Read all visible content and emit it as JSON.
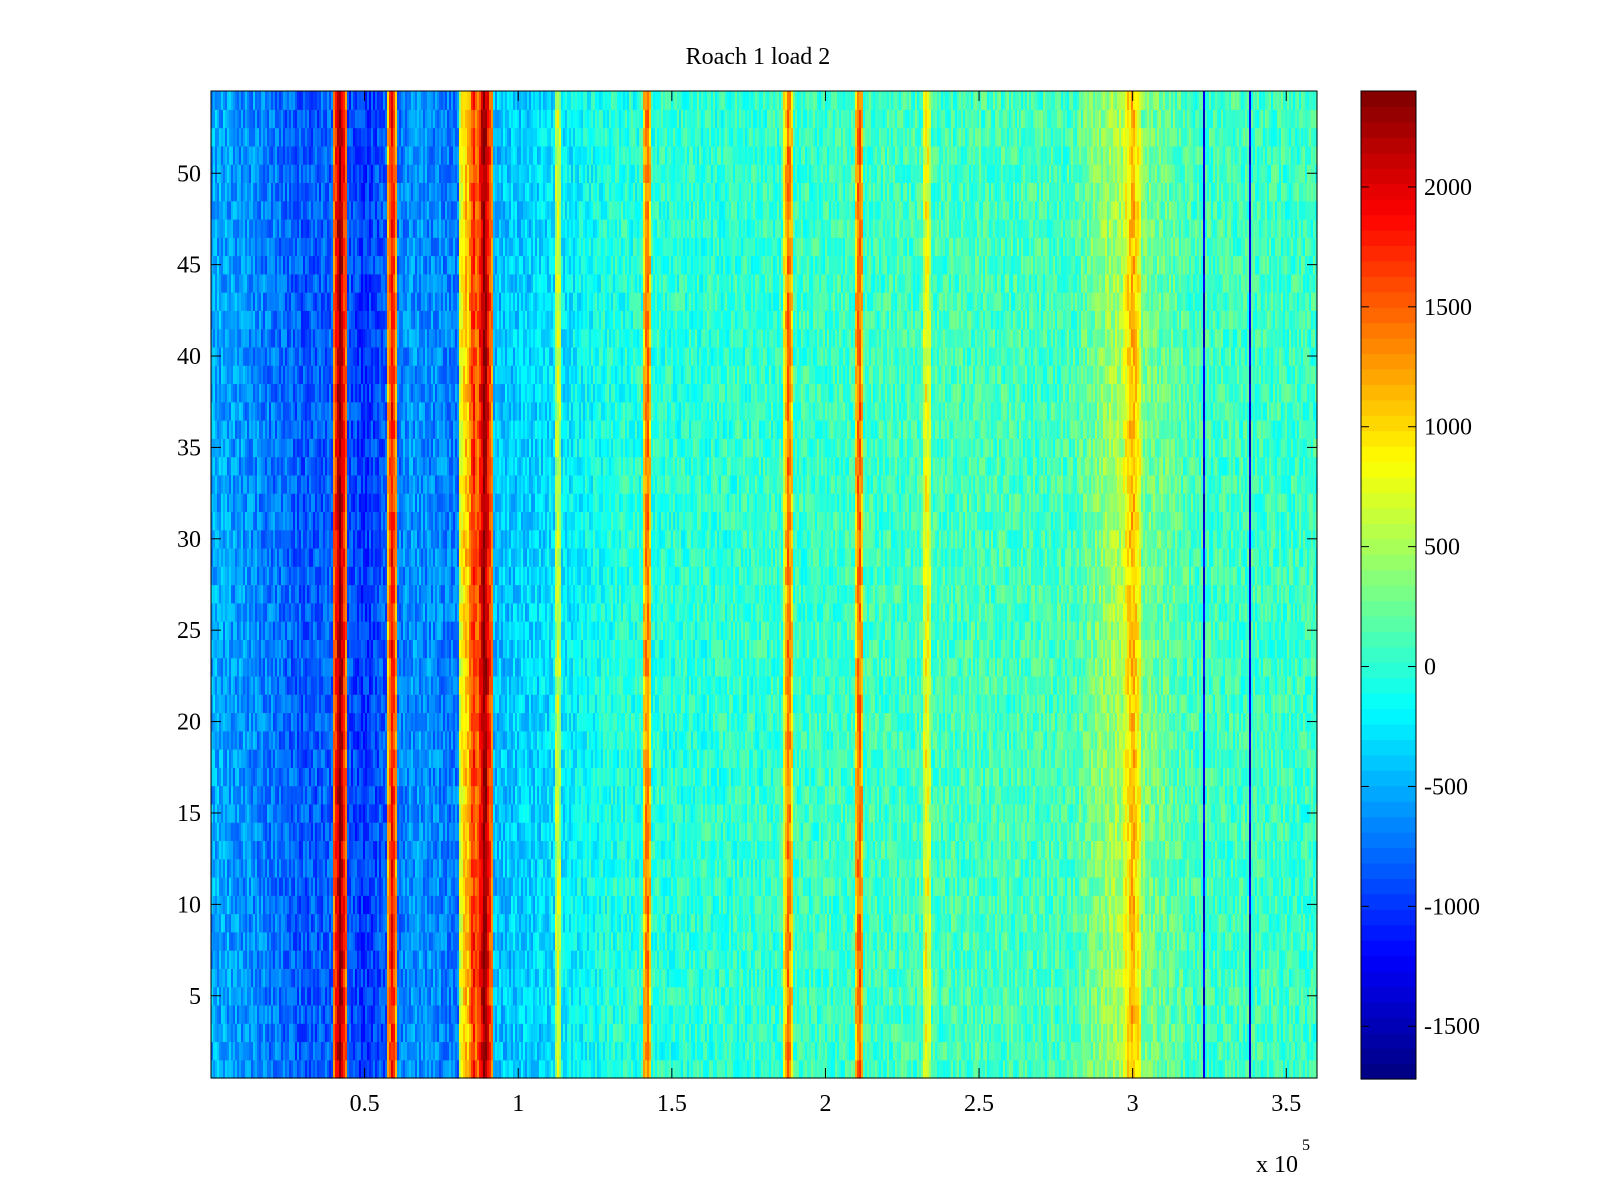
{
  "chart_data": {
    "type": "heatmap",
    "title": "Roach 1 load 2",
    "xlabel": "",
    "ylabel": "",
    "x_exponent_label": "x 10",
    "x_exponent_power": "5",
    "xlim": [
      0,
      360000
    ],
    "ylim": [
      0.5,
      54.5
    ],
    "x_ticks": [
      {
        "value": 0.5,
        "label": "0.5"
      },
      {
        "value": 1,
        "label": "1"
      },
      {
        "value": 1.5,
        "label": "1.5"
      },
      {
        "value": 2,
        "label": "2"
      },
      {
        "value": 2.5,
        "label": "2.5"
      },
      {
        "value": 3,
        "label": "3"
      },
      {
        "value": 3.5,
        "label": "3.5"
      }
    ],
    "y_ticks": [
      {
        "value": 5,
        "label": "5"
      },
      {
        "value": 10,
        "label": "10"
      },
      {
        "value": 15,
        "label": "15"
      },
      {
        "value": 20,
        "label": "20"
      },
      {
        "value": 25,
        "label": "25"
      },
      {
        "value": 30,
        "label": "30"
      },
      {
        "value": 35,
        "label": "35"
      },
      {
        "value": 40,
        "label": "40"
      },
      {
        "value": 45,
        "label": "45"
      },
      {
        "value": 50,
        "label": "50"
      }
    ],
    "rows": 54,
    "colormap": "jet",
    "clim": [
      -1720,
      2400
    ],
    "colorbar": {
      "placement": "right",
      "ticks": [
        {
          "value": 2000,
          "label": "2000"
        },
        {
          "value": 1500,
          "label": "1500"
        },
        {
          "value": 1000,
          "label": "1000"
        },
        {
          "value": 500,
          "label": "500"
        },
        {
          "value": 0,
          "label": "0"
        },
        {
          "value": -500,
          "label": "-500"
        },
        {
          "value": -1000,
          "label": "-1000"
        },
        {
          "value": -1500,
          "label": "-1500"
        }
      ]
    },
    "baseline_profile": [
      {
        "x": 0,
        "value": -500
      },
      {
        "x": 15000,
        "value": -650
      },
      {
        "x": 30000,
        "value": -850
      },
      {
        "x": 42000,
        "value": -800
      },
      {
        "x": 50000,
        "value": -1000
      },
      {
        "x": 58000,
        "value": -800
      },
      {
        "x": 65000,
        "value": -600
      },
      {
        "x": 80000,
        "value": -700
      },
      {
        "x": 95000,
        "value": -400
      },
      {
        "x": 110000,
        "value": -300
      },
      {
        "x": 130000,
        "value": -50
      },
      {
        "x": 160000,
        "value": 0
      },
      {
        "x": 200000,
        "value": 50
      },
      {
        "x": 250000,
        "value": 100
      },
      {
        "x": 280000,
        "value": 100
      },
      {
        "x": 295000,
        "value": 500
      },
      {
        "x": 305000,
        "value": 300
      },
      {
        "x": 320000,
        "value": 100
      },
      {
        "x": 360000,
        "value": 50
      }
    ],
    "bands": [
      {
        "x": 42000,
        "width": 2200,
        "value": 2400
      },
      {
        "x": 59000,
        "width": 1600,
        "value": 1900
      },
      {
        "x": 83000,
        "width": 2500,
        "value": 1100
      },
      {
        "x": 85500,
        "width": 2000,
        "value": 1800
      },
      {
        "x": 89000,
        "width": 2500,
        "value": 2400
      },
      {
        "x": 113000,
        "width": 1200,
        "value": 700
      },
      {
        "x": 142000,
        "width": 1500,
        "value": 1500
      },
      {
        "x": 188000,
        "width": 1500,
        "value": 1500
      },
      {
        "x": 211000,
        "width": 1500,
        "value": 1600
      },
      {
        "x": 233000,
        "width": 1500,
        "value": 900
      },
      {
        "x": 300000,
        "width": 3000,
        "value": 1200
      },
      {
        "x": 323000,
        "width": 400,
        "value": -1700
      },
      {
        "x": 338000,
        "width": 400,
        "value": -1700
      }
    ]
  }
}
